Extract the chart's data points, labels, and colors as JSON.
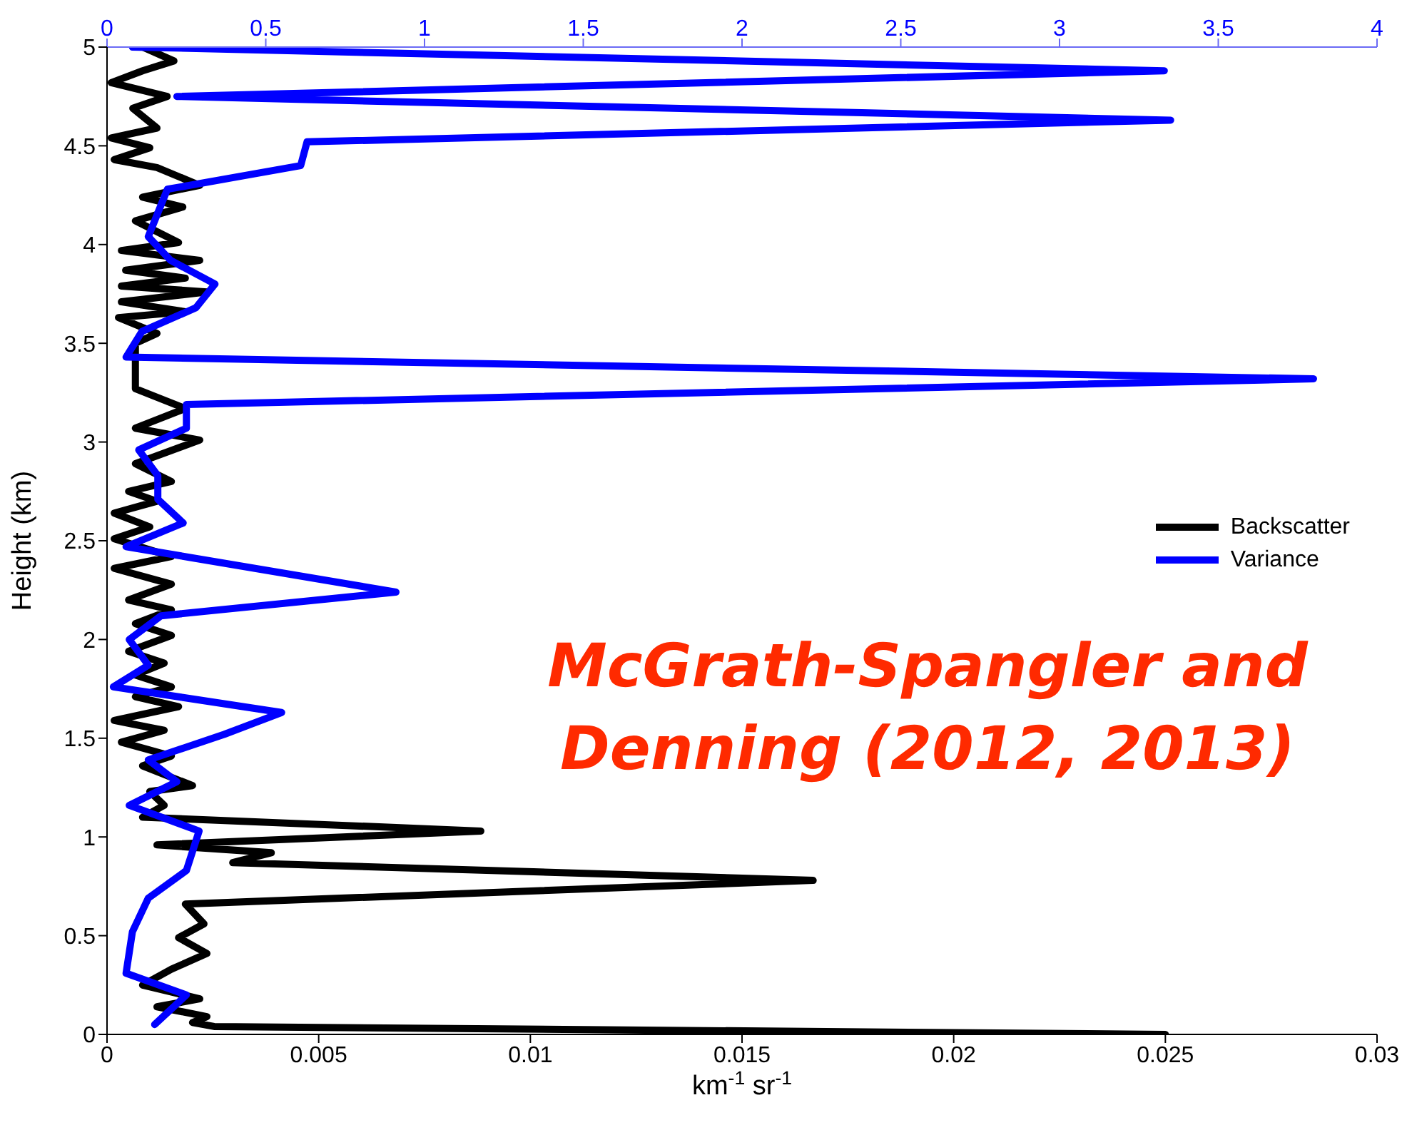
{
  "chart_data": {
    "type": "line",
    "xlabel": "km$^{-1}$ sr$^{-1}$",
    "ylabel": "Height (km)",
    "xlim": [
      0,
      0.03
    ],
    "xticks": [
      0,
      0.005,
      0.01,
      0.015,
      0.02,
      0.025,
      0.03
    ],
    "x2lim": [
      0,
      4
    ],
    "x2ticks": [
      0,
      0.5,
      1,
      1.5,
      2,
      2.5,
      3,
      3.5,
      4
    ],
    "ylim": [
      0,
      5
    ],
    "yticks": [
      0,
      0.5,
      1,
      1.5,
      2,
      2.5,
      3,
      3.5,
      4,
      4.5,
      5
    ],
    "legend": "right",
    "marker": "none",
    "line_style": "solid",
    "annotations": [
      "McGrath-Spangler and Denning (2012, 2013)"
    ],
    "series": [
      {
        "name": "Backscatter",
        "color": "#000000",
        "x": [
          0.00084,
          0.00158,
          0.00084,
          0.0001,
          0.00142,
          0.00061,
          0.00118,
          0.0001,
          0.00101,
          0.00017,
          0.00118,
          0.00219,
          0.00084,
          0.00179,
          0.00067,
          0.00169,
          0.00034,
          0.00219,
          0.00044,
          0.00185,
          0.00034,
          0.00236,
          0.00034,
          0.00185,
          0.00027,
          0.00118,
          0.00067,
          0.00067,
          0.00185,
          0.00067,
          0.00219,
          0.00067,
          0.00152,
          0.00051,
          0.00118,
          0.00017,
          0.00101,
          0.00017,
          0.00152,
          0.00017,
          0.00152,
          0.00051,
          0.00152,
          0.00067,
          0.00152,
          0.00051,
          0.00135,
          0.00067,
          0.00152,
          0.00067,
          0.00169,
          0.00017,
          0.00135,
          0.00034,
          0.00152,
          0.00084,
          0.00202,
          0.00101,
          0.00135,
          0.00084,
          0.00883,
          0.00118,
          0.00388,
          0.00297,
          0.01668,
          0.00185,
          0.00229,
          0.00169,
          0.00236,
          0.00152,
          0.00084,
          0.00219,
          0.00118,
          0.00236,
          0.00202,
          0.00253,
          0.025
        ],
        "values": [
          5.0,
          4.93,
          4.88,
          4.82,
          4.75,
          4.69,
          4.59,
          4.54,
          4.49,
          4.43,
          4.39,
          4.3,
          4.24,
          4.19,
          4.12,
          4.01,
          3.97,
          3.92,
          3.87,
          3.83,
          3.79,
          3.76,
          3.71,
          3.66,
          3.63,
          3.55,
          3.5,
          3.27,
          3.17,
          3.07,
          3.01,
          2.89,
          2.8,
          2.75,
          2.7,
          2.64,
          2.57,
          2.51,
          2.42,
          2.36,
          2.28,
          2.2,
          2.15,
          2.08,
          2.02,
          1.94,
          1.88,
          1.82,
          1.76,
          1.71,
          1.66,
          1.59,
          1.54,
          1.48,
          1.41,
          1.36,
          1.26,
          1.23,
          1.16,
          1.1,
          1.03,
          0.96,
          0.92,
          0.87,
          0.78,
          0.66,
          0.56,
          0.49,
          0.41,
          0.33,
          0.25,
          0.18,
          0.14,
          0.09,
          0.06,
          0.04,
          0.0
        ]
      },
      {
        "name": "Variance",
        "color": "#0000ff",
        "axis": "x2",
        "x": [
          0.08,
          3.33,
          0.22,
          3.35,
          0.63,
          0.61,
          0.19,
          0.13,
          0.2,
          0.34,
          0.28,
          0.11,
          0.06,
          3.8,
          0.25,
          0.25,
          0.1,
          0.16,
          0.16,
          0.24,
          0.06,
          0.91,
          0.17,
          0.07,
          0.13,
          0.02,
          0.55,
          0.37,
          0.13,
          0.22,
          0.07,
          0.29,
          0.25,
          0.13,
          0.08,
          0.06,
          0.25,
          0.15
        ],
        "values": [
          5.0,
          4.88,
          4.75,
          4.63,
          4.52,
          4.4,
          4.28,
          4.04,
          3.92,
          3.8,
          3.68,
          3.56,
          3.43,
          3.32,
          3.19,
          3.07,
          2.96,
          2.83,
          2.71,
          2.59,
          2.47,
          2.24,
          2.12,
          2.0,
          1.87,
          1.76,
          1.63,
          1.52,
          1.39,
          1.28,
          1.16,
          1.03,
          0.83,
          0.69,
          0.52,
          0.31,
          0.2,
          0.05
        ]
      }
    ]
  }
}
